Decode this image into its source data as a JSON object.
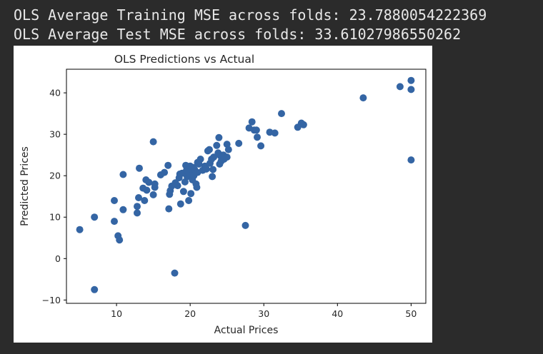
{
  "console": {
    "train_line": "OLS Average Training MSE across folds: 23.7880054222369",
    "test_line": "OLS Average Test MSE across folds: 33.61027986550262"
  },
  "colors": {
    "background": "#2b2b2b",
    "text": "#e8e8e8",
    "plot_bg": "#ffffff",
    "marker": "#3465a4"
  },
  "chart_data": {
    "type": "scatter",
    "title": "OLS Predictions vs Actual",
    "xlabel": "Actual Prices",
    "ylabel": "Predicted Prices",
    "xlim": [
      3.2,
      52.0
    ],
    "ylim": [
      -10.8,
      45.7
    ],
    "xticks": [
      10,
      20,
      30,
      40,
      50
    ],
    "yticks": [
      -10,
      0,
      10,
      20,
      30,
      40
    ],
    "grid": false,
    "points": [
      [
        5.0,
        7.0
      ],
      [
        7.0,
        -7.5
      ],
      [
        7.0,
        10.0
      ],
      [
        9.7,
        14.0
      ],
      [
        9.7,
        9.0
      ],
      [
        10.2,
        5.5
      ],
      [
        10.4,
        4.5
      ],
      [
        10.9,
        11.8
      ],
      [
        10.9,
        20.3
      ],
      [
        12.8,
        12.6
      ],
      [
        12.8,
        11.0
      ],
      [
        13.0,
        14.7
      ],
      [
        13.1,
        21.8
      ],
      [
        13.6,
        17.0
      ],
      [
        13.8,
        14.0
      ],
      [
        14.0,
        19.0
      ],
      [
        14.1,
        16.5
      ],
      [
        14.4,
        18.4
      ],
      [
        15.0,
        28.2
      ],
      [
        15.0,
        15.4
      ],
      [
        15.2,
        17.2
      ],
      [
        15.2,
        18.0
      ],
      [
        16.0,
        20.2
      ],
      [
        16.5,
        20.8
      ],
      [
        17.0,
        22.5
      ],
      [
        17.1,
        12.0
      ],
      [
        17.2,
        15.5
      ],
      [
        17.3,
        16.4
      ],
      [
        17.5,
        17.5
      ],
      [
        17.9,
        -3.5
      ],
      [
        18.0,
        18.3
      ],
      [
        18.3,
        17.6
      ],
      [
        18.5,
        19.5
      ],
      [
        18.6,
        20.4
      ],
      [
        18.7,
        13.2
      ],
      [
        18.9,
        20.6
      ],
      [
        19.1,
        16.2
      ],
      [
        19.3,
        18.5
      ],
      [
        19.4,
        22.5
      ],
      [
        19.5,
        21.3
      ],
      [
        19.6,
        19.8
      ],
      [
        19.7,
        21.0
      ],
      [
        19.8,
        14.0
      ],
      [
        19.9,
        20.5
      ],
      [
        20.0,
        22.3
      ],
      [
        20.1,
        15.7
      ],
      [
        20.2,
        21.5
      ],
      [
        20.3,
        19.0
      ],
      [
        20.4,
        22.0
      ],
      [
        20.5,
        20.0
      ],
      [
        20.6,
        21.5
      ],
      [
        20.8,
        18.0
      ],
      [
        20.9,
        17.2
      ],
      [
        21.0,
        23.2
      ],
      [
        21.0,
        20.8
      ],
      [
        21.2,
        22.8
      ],
      [
        21.4,
        24.0
      ],
      [
        21.7,
        21.3
      ],
      [
        22.0,
        22.3
      ],
      [
        22.2,
        21.6
      ],
      [
        22.4,
        26.0
      ],
      [
        22.6,
        26.3
      ],
      [
        22.7,
        23.0
      ],
      [
        22.9,
        24.0
      ],
      [
        23.0,
        19.8
      ],
      [
        23.1,
        21.5
      ],
      [
        23.2,
        24.5
      ],
      [
        23.6,
        27.3
      ],
      [
        23.8,
        25.5
      ],
      [
        23.9,
        29.2
      ],
      [
        24.0,
        22.8
      ],
      [
        24.1,
        24.8
      ],
      [
        24.2,
        23.5
      ],
      [
        24.5,
        25.0
      ],
      [
        24.6,
        24.0
      ],
      [
        25.0,
        27.6
      ],
      [
        25.0,
        24.5
      ],
      [
        25.2,
        26.3
      ],
      [
        26.6,
        27.8
      ],
      [
        27.5,
        8.0
      ],
      [
        28.0,
        31.5
      ],
      [
        28.4,
        33.0
      ],
      [
        28.7,
        31.0
      ],
      [
        29.0,
        31.0
      ],
      [
        29.1,
        29.3
      ],
      [
        29.6,
        27.2
      ],
      [
        30.8,
        30.5
      ],
      [
        31.5,
        30.3
      ],
      [
        32.4,
        35.0
      ],
      [
        34.6,
        31.7
      ],
      [
        35.1,
        32.7
      ],
      [
        35.4,
        32.3
      ],
      [
        43.5,
        38.8
      ],
      [
        48.5,
        41.5
      ],
      [
        50.0,
        43.0
      ],
      [
        50.0,
        40.8
      ],
      [
        50.0,
        23.8
      ]
    ]
  }
}
